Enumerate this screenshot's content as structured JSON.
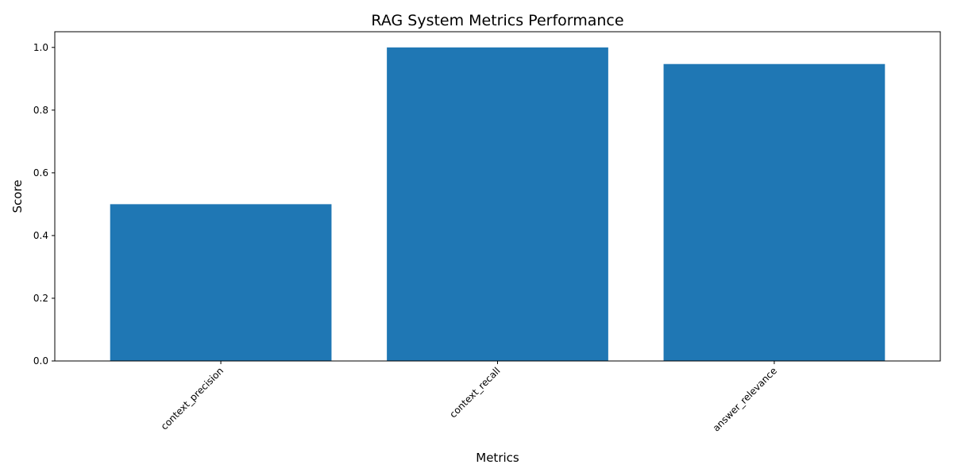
{
  "chart_data": {
    "type": "bar",
    "title": "RAG System Metrics Performance",
    "xlabel": "Metrics",
    "ylabel": "Score",
    "categories": [
      "context_precision",
      "context_recall",
      "answer_relevance"
    ],
    "values": [
      0.5,
      1.0,
      0.947
    ],
    "ylim": [
      0,
      1.05
    ],
    "yticks": [
      0.0,
      0.2,
      0.4,
      0.6,
      0.8,
      1.0
    ],
    "ytick_labels": [
      "0.0",
      "0.2",
      "0.4",
      "0.6",
      "0.8",
      "1.0"
    ],
    "grid": false,
    "legend": "none",
    "bar_color": "#1f77b4"
  }
}
